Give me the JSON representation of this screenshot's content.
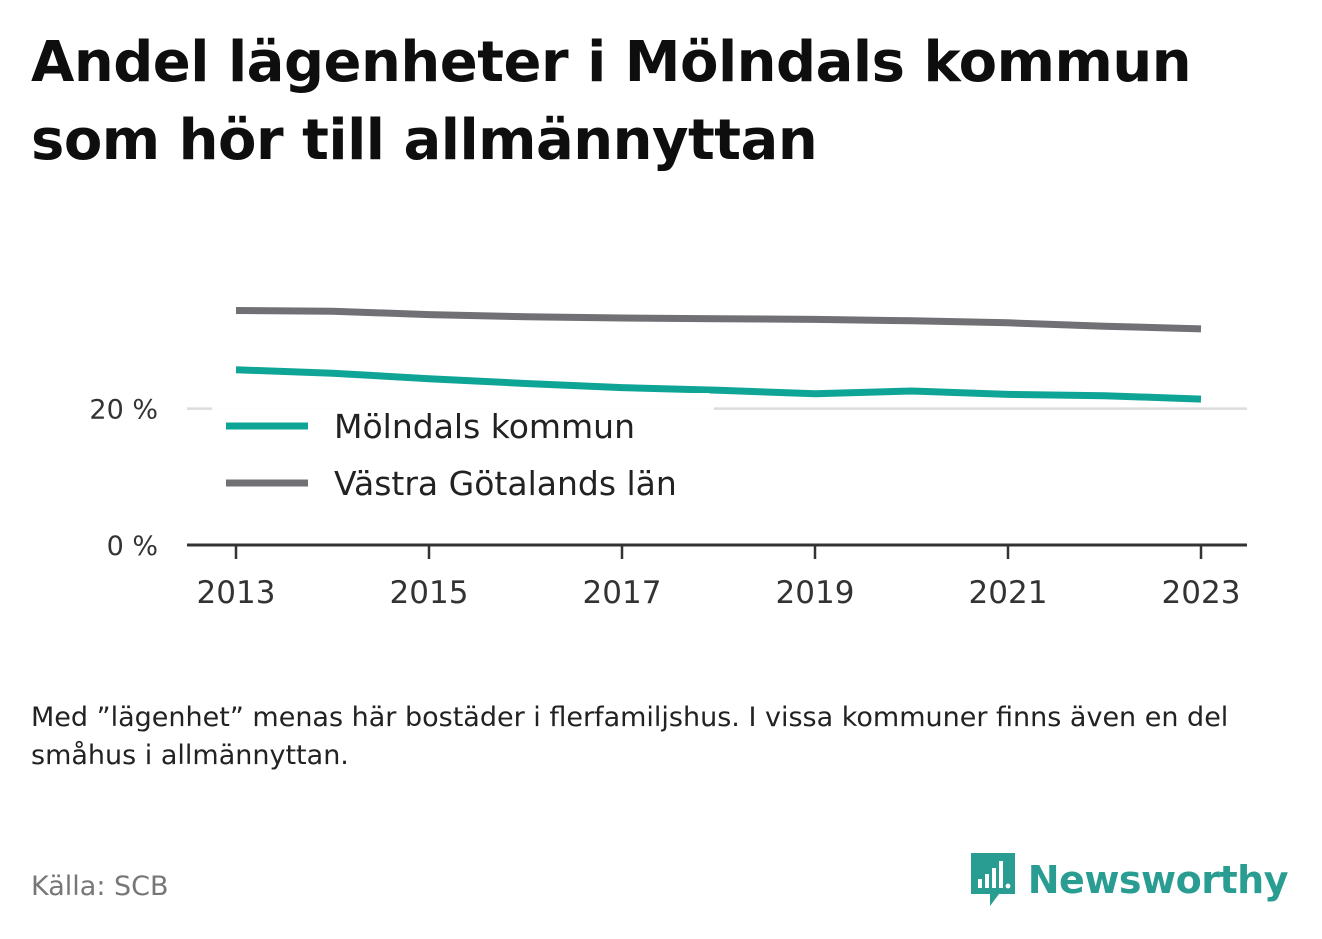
{
  "title": "Andel lägenheter i Mölndals kommun som hör till allmännyttan",
  "note": "Med ”lägenhet” menas här bostäder i flerfamiljshus. I vissa kommuner finns även en del småhus i allmännyttan.",
  "source": "Källa: SCB",
  "brand": {
    "name": "Newsworthy",
    "icon": "newsworthy-logo-icon"
  },
  "colors": {
    "teal": "#0fa596",
    "gray": "#707075",
    "brand": "#2a9d92"
  },
  "chart_data": {
    "type": "line",
    "x": [
      2013,
      2014,
      2015,
      2016,
      2017,
      2018,
      2019,
      2020,
      2021,
      2022,
      2023
    ],
    "x_ticks": [
      "2013",
      "2015",
      "2017",
      "2019",
      "2021",
      "2023"
    ],
    "y_ticks": [
      "0 %",
      "20 %"
    ],
    "y_tick_values": [
      0,
      20
    ],
    "ylim": [
      0,
      38
    ],
    "grid": true,
    "legend_position": "inside-bottom-left",
    "series": [
      {
        "name": "Mölndals kommun",
        "color": "#0fa596",
        "values": [
          25.7,
          25.2,
          24.4,
          23.7,
          23.1,
          22.7,
          22.2,
          22.6,
          22.1,
          21.9,
          21.4
        ]
      },
      {
        "name": "Västra Götalands län",
        "color": "#707075",
        "values": [
          34.4,
          34.3,
          33.8,
          33.5,
          33.3,
          33.2,
          33.1,
          32.9,
          32.6,
          32.1,
          31.7
        ]
      }
    ]
  }
}
